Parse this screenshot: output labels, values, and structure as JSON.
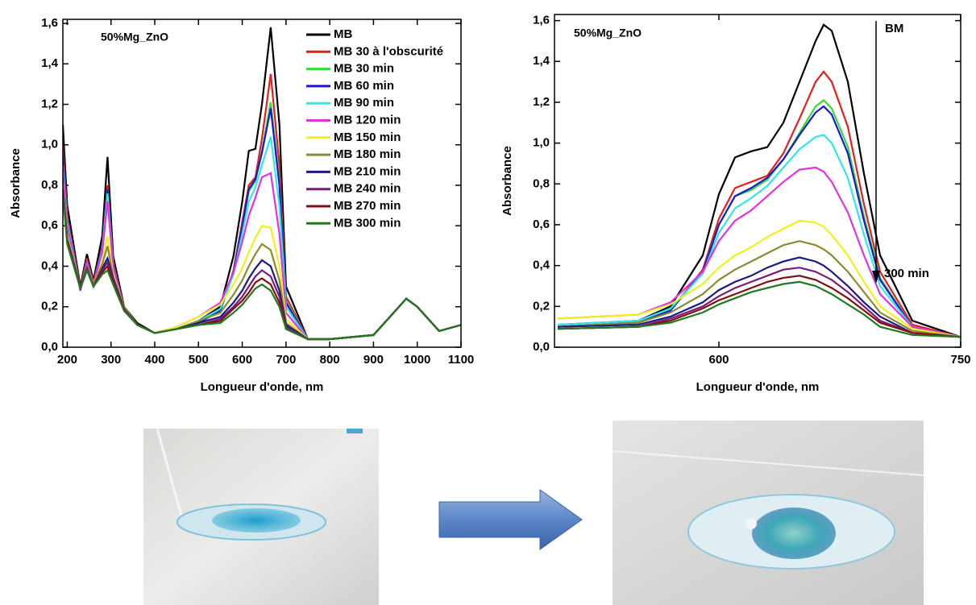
{
  "chart_data": [
    {
      "type": "line",
      "annotations": [
        "50%Mg_ZnO"
      ],
      "xlabel": "Longueur d'onde, nm",
      "ylabel": "Absorbance",
      "legend": "upper right",
      "xlim": [
        190,
        1100
      ],
      "ylim": [
        0,
        1.62
      ],
      "xticks": [
        200,
        300,
        400,
        500,
        600,
        700,
        800,
        900,
        1000,
        1100
      ],
      "yticks": [
        {
          "value": 0,
          "label": "0,0"
        },
        {
          "value": 0.2,
          "label": "0,2"
        },
        {
          "value": 0.4,
          "label": "0,4"
        },
        {
          "value": 0.6,
          "label": "0,6"
        },
        {
          "value": 0.8,
          "label": "0,8"
        },
        {
          "value": 1.0,
          "label": "1,0"
        },
        {
          "value": 1.2,
          "label": "1,2"
        },
        {
          "value": 1.4,
          "label": "1,4"
        },
        {
          "value": 1.6,
          "label": "1,6"
        }
      ],
      "x": [
        190,
        200,
        230,
        245,
        260,
        280,
        292,
        305,
        330,
        360,
        400,
        450,
        500,
        550,
        580,
        600,
        615,
        630,
        645,
        665,
        685,
        700,
        750,
        800,
        900,
        950,
        975,
        1000,
        1050,
        1100
      ],
      "series": [
        {
          "name": "MB",
          "color": "#000000",
          "values": [
            1.1,
            0.7,
            0.3,
            0.46,
            0.33,
            0.55,
            0.94,
            0.45,
            0.2,
            0.12,
            0.07,
            0.09,
            0.13,
            0.2,
            0.45,
            0.72,
            0.97,
            0.98,
            1.2,
            1.58,
            1.1,
            0.3,
            0.04,
            0.04,
            0.06,
            0.18,
            0.24,
            0.2,
            0.08,
            0.11
          ]
        },
        {
          "name": "MB 30 à l'obscurité",
          "color": "#e02020",
          "values": [
            1.0,
            0.65,
            0.29,
            0.44,
            0.32,
            0.5,
            0.8,
            0.42,
            0.19,
            0.11,
            0.07,
            0.09,
            0.12,
            0.18,
            0.38,
            0.62,
            0.8,
            0.84,
            1.03,
            1.35,
            0.9,
            0.25,
            0.04,
            0.04,
            0.06,
            0.18,
            0.24,
            0.2,
            0.08,
            0.11
          ]
        },
        {
          "name": "MB 30 min",
          "color": "#33dd33",
          "values": [
            0.95,
            0.63,
            0.28,
            0.43,
            0.31,
            0.49,
            0.78,
            0.41,
            0.19,
            0.11,
            0.07,
            0.09,
            0.12,
            0.18,
            0.37,
            0.6,
            0.77,
            0.82,
            0.97,
            1.21,
            0.82,
            0.23,
            0.04,
            0.04,
            0.06,
            0.18,
            0.24,
            0.2,
            0.08,
            0.11
          ]
        },
        {
          "name": "MB 60 min",
          "color": "#1a1acc",
          "values": [
            0.95,
            0.63,
            0.28,
            0.43,
            0.31,
            0.49,
            0.78,
            0.41,
            0.19,
            0.11,
            0.07,
            0.09,
            0.12,
            0.18,
            0.37,
            0.6,
            0.78,
            0.83,
            0.96,
            1.18,
            0.8,
            0.22,
            0.04,
            0.04,
            0.06,
            0.18,
            0.24,
            0.2,
            0.08,
            0.11
          ]
        },
        {
          "name": "MB 90 min",
          "color": "#33e5e5",
          "values": [
            0.9,
            0.62,
            0.28,
            0.42,
            0.31,
            0.48,
            0.76,
            0.4,
            0.19,
            0.11,
            0.07,
            0.09,
            0.13,
            0.19,
            0.36,
            0.56,
            0.72,
            0.79,
            0.9,
            1.04,
            0.7,
            0.2,
            0.04,
            0.04,
            0.06,
            0.18,
            0.24,
            0.2,
            0.08,
            0.11
          ]
        },
        {
          "name": "MB 120 min",
          "color": "#e033e0",
          "values": [
            0.88,
            0.6,
            0.28,
            0.42,
            0.31,
            0.47,
            0.72,
            0.4,
            0.19,
            0.11,
            0.07,
            0.1,
            0.15,
            0.22,
            0.37,
            0.52,
            0.65,
            0.74,
            0.84,
            0.86,
            0.56,
            0.17,
            0.04,
            0.04,
            0.06,
            0.18,
            0.24,
            0.2,
            0.08,
            0.11
          ]
        },
        {
          "name": "MB 150 min",
          "color": "#f0f020",
          "values": [
            0.8,
            0.55,
            0.3,
            0.4,
            0.31,
            0.42,
            0.55,
            0.36,
            0.2,
            0.11,
            0.07,
            0.1,
            0.15,
            0.21,
            0.31,
            0.39,
            0.47,
            0.54,
            0.6,
            0.59,
            0.4,
            0.14,
            0.04,
            0.04,
            0.06,
            0.18,
            0.24,
            0.2,
            0.08,
            0.11
          ]
        },
        {
          "name": "MB 180 min",
          "color": "#8a8a30",
          "values": [
            0.8,
            0.54,
            0.3,
            0.4,
            0.31,
            0.41,
            0.5,
            0.35,
            0.2,
            0.11,
            0.07,
            0.09,
            0.13,
            0.17,
            0.26,
            0.33,
            0.4,
            0.46,
            0.51,
            0.48,
            0.33,
            0.12,
            0.04,
            0.04,
            0.06,
            0.18,
            0.24,
            0.2,
            0.08,
            0.11
          ]
        },
        {
          "name": "MB 210 min",
          "color": "#1a1a80",
          "values": [
            0.78,
            0.53,
            0.3,
            0.39,
            0.3,
            0.39,
            0.44,
            0.34,
            0.19,
            0.11,
            0.07,
            0.09,
            0.12,
            0.15,
            0.22,
            0.28,
            0.34,
            0.39,
            0.43,
            0.4,
            0.28,
            0.11,
            0.04,
            0.04,
            0.06,
            0.18,
            0.24,
            0.2,
            0.08,
            0.11
          ]
        },
        {
          "name": "MB 240 min",
          "color": "#7a1a7a",
          "values": [
            0.78,
            0.52,
            0.3,
            0.39,
            0.3,
            0.38,
            0.42,
            0.33,
            0.19,
            0.11,
            0.07,
            0.09,
            0.11,
            0.14,
            0.2,
            0.25,
            0.3,
            0.35,
            0.38,
            0.35,
            0.25,
            0.1,
            0.04,
            0.04,
            0.06,
            0.18,
            0.24,
            0.2,
            0.08,
            0.11
          ]
        },
        {
          "name": "MB 270 min",
          "color": "#801010",
          "values": [
            0.77,
            0.52,
            0.29,
            0.38,
            0.3,
            0.37,
            0.4,
            0.32,
            0.18,
            0.11,
            0.07,
            0.09,
            0.11,
            0.13,
            0.19,
            0.23,
            0.27,
            0.32,
            0.34,
            0.31,
            0.22,
            0.09,
            0.04,
            0.04,
            0.06,
            0.18,
            0.24,
            0.2,
            0.08,
            0.11
          ]
        },
        {
          "name": "MB 300 min",
          "color": "#207a20",
          "values": [
            0.76,
            0.51,
            0.29,
            0.38,
            0.3,
            0.36,
            0.38,
            0.31,
            0.18,
            0.11,
            0.07,
            0.09,
            0.11,
            0.12,
            0.17,
            0.21,
            0.25,
            0.29,
            0.31,
            0.28,
            0.2,
            0.09,
            0.04,
            0.04,
            0.06,
            0.18,
            0.24,
            0.2,
            0.08,
            0.11
          ]
        }
      ]
    },
    {
      "type": "line",
      "annotations": [
        "50%Mg_ZnO",
        "BM",
        "300 min"
      ],
      "xlabel": "Longueur d'onde, nm",
      "ylabel": "Absorbance",
      "xlim": [
        498,
        750
      ],
      "ylim": [
        0,
        1.63
      ],
      "xticks": [
        600,
        750
      ],
      "yticks": [
        {
          "value": 0,
          "label": "0,0"
        },
        {
          "value": 0.2,
          "label": "0,2"
        },
        {
          "value": 0.4,
          "label": "0,4"
        },
        {
          "value": 0.6,
          "label": "0,6"
        },
        {
          "value": 0.8,
          "label": "0,8"
        },
        {
          "value": 1.0,
          "label": "1,0"
        },
        {
          "value": 1.2,
          "label": "1,2"
        },
        {
          "value": 1.4,
          "label": "1,4"
        },
        {
          "value": 1.6,
          "label": "1,6"
        }
      ],
      "x": [
        500,
        550,
        570,
        590,
        600,
        610,
        620,
        630,
        640,
        650,
        660,
        665,
        670,
        680,
        690,
        700,
        720,
        750
      ],
      "series": [
        {
          "color": "#000000",
          "values": [
            0.11,
            0.13,
            0.2,
            0.45,
            0.75,
            0.93,
            0.96,
            0.98,
            1.1,
            1.3,
            1.5,
            1.58,
            1.55,
            1.3,
            0.85,
            0.45,
            0.13,
            0.05
          ]
        },
        {
          "color": "#e02020",
          "values": [
            0.1,
            0.12,
            0.18,
            0.38,
            0.63,
            0.78,
            0.81,
            0.84,
            0.95,
            1.12,
            1.3,
            1.35,
            1.3,
            1.08,
            0.7,
            0.37,
            0.11,
            0.05
          ]
        },
        {
          "color": "#33dd33",
          "values": [
            0.1,
            0.12,
            0.18,
            0.37,
            0.6,
            0.74,
            0.77,
            0.82,
            0.92,
            1.05,
            1.18,
            1.21,
            1.17,
            0.98,
            0.64,
            0.34,
            0.1,
            0.05
          ]
        },
        {
          "color": "#1a1acc",
          "values": [
            0.1,
            0.12,
            0.18,
            0.37,
            0.6,
            0.74,
            0.78,
            0.83,
            0.92,
            1.04,
            1.15,
            1.18,
            1.14,
            0.95,
            0.62,
            0.33,
            0.1,
            0.05
          ]
        },
        {
          "color": "#33e5e5",
          "values": [
            0.11,
            0.13,
            0.19,
            0.36,
            0.56,
            0.68,
            0.73,
            0.79,
            0.88,
            0.97,
            1.03,
            1.04,
            1.0,
            0.83,
            0.55,
            0.3,
            0.1,
            0.05
          ]
        },
        {
          "color": "#e033e0",
          "values": [
            0.14,
            0.16,
            0.22,
            0.37,
            0.52,
            0.62,
            0.67,
            0.74,
            0.81,
            0.87,
            0.88,
            0.86,
            0.81,
            0.66,
            0.45,
            0.26,
            0.1,
            0.05
          ]
        },
        {
          "color": "#f0f020",
          "values": [
            0.14,
            0.16,
            0.21,
            0.31,
            0.39,
            0.45,
            0.49,
            0.54,
            0.58,
            0.62,
            0.61,
            0.59,
            0.55,
            0.45,
            0.32,
            0.2,
            0.09,
            0.05
          ]
        },
        {
          "color": "#8a8a30",
          "values": [
            0.1,
            0.12,
            0.17,
            0.26,
            0.33,
            0.38,
            0.42,
            0.46,
            0.5,
            0.52,
            0.5,
            0.48,
            0.45,
            0.37,
            0.27,
            0.17,
            0.08,
            0.05
          ]
        },
        {
          "color": "#1a1a80",
          "values": [
            0.1,
            0.11,
            0.15,
            0.22,
            0.28,
            0.32,
            0.35,
            0.39,
            0.42,
            0.44,
            0.42,
            0.4,
            0.37,
            0.3,
            0.22,
            0.15,
            0.07,
            0.05
          ]
        },
        {
          "color": "#7a1a7a",
          "values": [
            0.09,
            0.1,
            0.14,
            0.2,
            0.25,
            0.29,
            0.32,
            0.35,
            0.38,
            0.39,
            0.37,
            0.35,
            0.33,
            0.27,
            0.2,
            0.13,
            0.07,
            0.05
          ]
        },
        {
          "color": "#801010",
          "values": [
            0.09,
            0.1,
            0.13,
            0.19,
            0.23,
            0.26,
            0.29,
            0.32,
            0.34,
            0.35,
            0.33,
            0.31,
            0.29,
            0.24,
            0.18,
            0.12,
            0.07,
            0.05
          ]
        },
        {
          "color": "#207a20",
          "values": [
            0.09,
            0.1,
            0.12,
            0.17,
            0.21,
            0.24,
            0.27,
            0.29,
            0.31,
            0.32,
            0.3,
            0.28,
            0.26,
            0.21,
            0.16,
            0.1,
            0.06,
            0.05
          ]
        }
      ]
    }
  ]
}
